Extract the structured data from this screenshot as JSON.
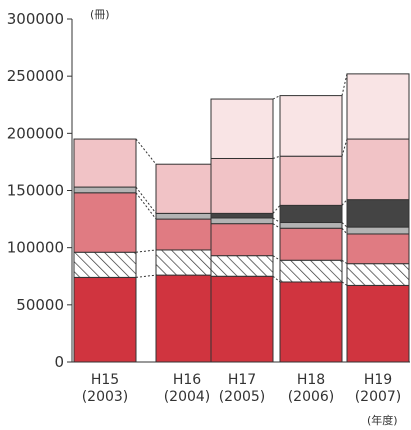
{
  "chart_data": {
    "type": "bar",
    "stacked": true,
    "categories": [
      "H15\n(2003)",
      "H16\n(2004)",
      "H17\n(2005)",
      "H18\n(2006)",
      "H19\n(2007)"
    ],
    "y_unit_label": "(冊)",
    "x_unit_label": "(年度)",
    "ylim": [
      0,
      300000
    ],
    "yticks": [
      0,
      50000,
      100000,
      150000,
      200000,
      250000,
      300000
    ],
    "grid": false,
    "series": [
      {
        "values": [
          74000,
          76000,
          75000,
          70000,
          67000
        ],
        "color": "#d0343f",
        "pattern": "solid"
      },
      {
        "values": [
          22000,
          22000,
          18000,
          19000,
          19000
        ],
        "color": "#ffffff",
        "pattern": "hatch"
      },
      {
        "values": [
          52000,
          27000,
          28000,
          28000,
          26000
        ],
        "color": "#e07b82",
        "pattern": "solid"
      },
      {
        "values": [
          5000,
          5000,
          5000,
          5000,
          6000
        ],
        "color": "#b3b3b3",
        "pattern": "solid"
      },
      {
        "values": [
          0,
          0,
          4000,
          15000,
          24000
        ],
        "color": "#444444",
        "pattern": "solid"
      },
      {
        "values": [
          42000,
          43000,
          48000,
          43000,
          53000
        ],
        "color": "#f1c3c6",
        "pattern": "solid"
      },
      {
        "values": [
          0,
          0,
          52000,
          53000,
          57000
        ],
        "color": "#f9e4e5",
        "pattern": "solid"
      }
    ]
  }
}
